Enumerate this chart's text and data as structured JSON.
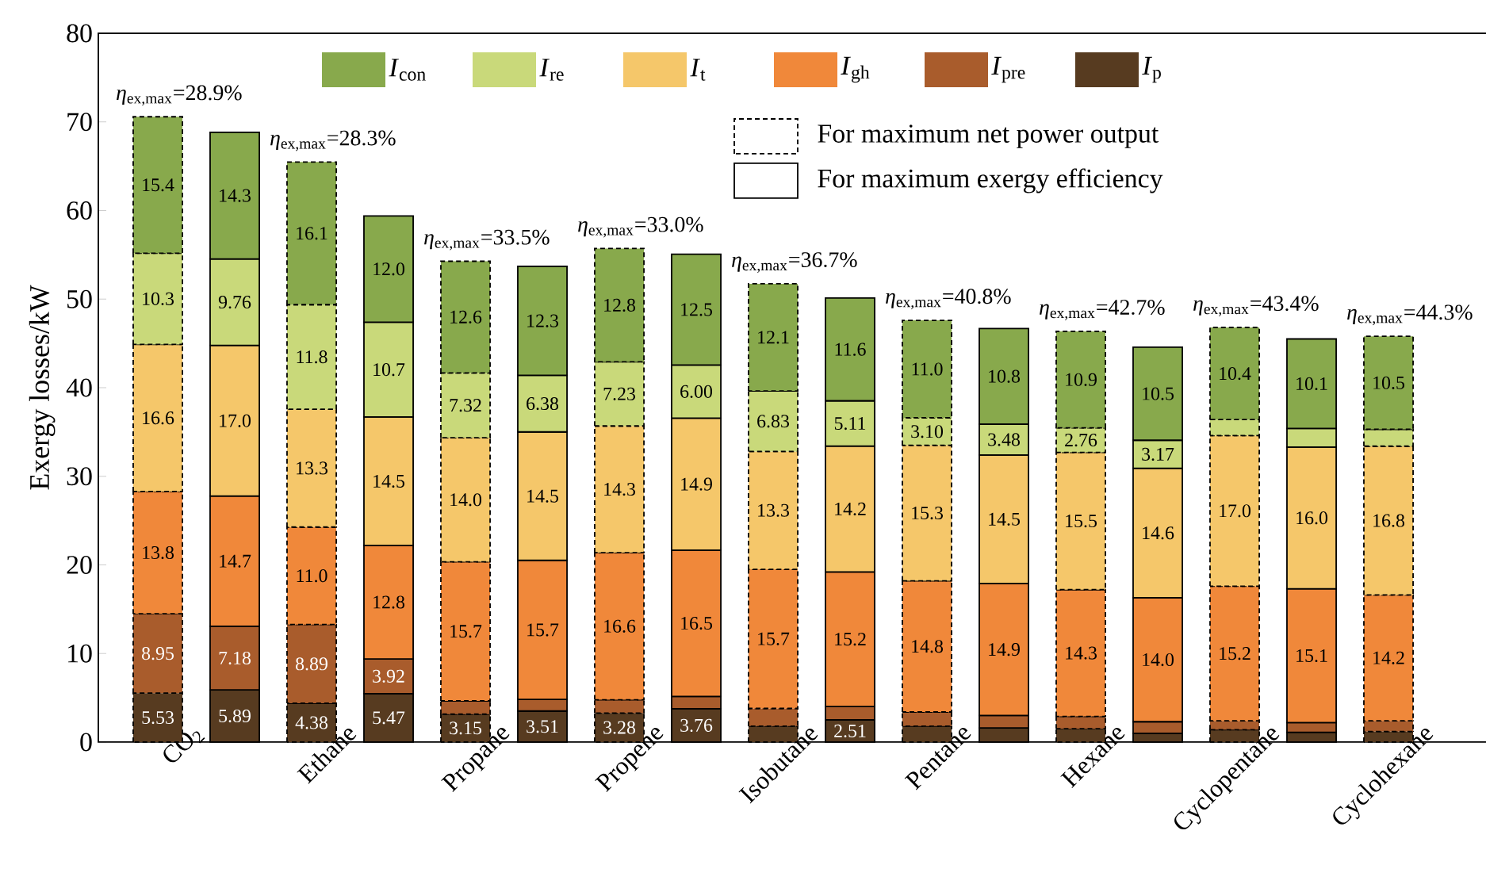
{
  "chart_data": {
    "type": "bar",
    "stacked": true,
    "ylabel": "Exergy losses/kW",
    "ylim": [
      0,
      80
    ],
    "yticks": [
      0,
      10,
      20,
      30,
      40,
      50,
      60,
      70,
      80
    ],
    "legend": "top",
    "categories": [
      "CO$_{2}$",
      null,
      "Ethane",
      null,
      "Propane",
      null,
      "Propene",
      null,
      "Isobutane",
      null,
      "Pentane",
      null,
      "Hexane",
      null,
      "Cyclopentane",
      null,
      "Cyclohexane",
      null
    ],
    "series": [
      {
        "name": "*I*$_{p}$",
        "color": "#573b20",
        "line_style": "dashed",
        "values": [
          5.53,
          null,
          4.38,
          null,
          3.15,
          null,
          3.28,
          null,
          1.8,
          null,
          1.8,
          null,
          1.5,
          null,
          1.4,
          null,
          1.2,
          null
        ],
        "value_labels": [
          "5.53",
          null,
          "4.38",
          null,
          "3.15",
          null,
          "3.28",
          null,
          null,
          null,
          null,
          null,
          null,
          null,
          null,
          null,
          null,
          null
        ]
      },
      {
        "name": "*I*$_{pre}$",
        "color": "#a95c2c",
        "line_style": "dashed",
        "values": [
          8.95,
          null,
          8.89,
          null,
          1.5,
          null,
          1.5,
          null,
          2.0,
          null,
          1.6,
          null,
          1.4,
          null,
          1.0,
          null,
          1.2,
          null
        ],
        "value_labels": [
          "8.95",
          null,
          "8.89",
          null,
          null,
          null,
          null,
          null,
          null,
          null,
          null,
          null,
          null,
          null,
          null,
          null,
          null,
          null
        ]
      },
      {
        "name": "*I*$_{gh}$",
        "color": "#f0883a",
        "line_style": "dashed",
        "values": [
          13.8,
          null,
          11.0,
          null,
          15.7,
          null,
          16.6,
          null,
          15.7,
          null,
          14.8,
          null,
          14.3,
          null,
          15.2,
          null,
          14.2,
          null
        ],
        "value_labels": [
          "13.8",
          null,
          "11.0",
          null,
          "15.7",
          null,
          "16.6",
          null,
          "15.7",
          null,
          "14.8",
          null,
          "14.3",
          null,
          "15.2",
          null,
          "14.2",
          null
        ]
      },
      {
        "name": "*I*$_{t}$",
        "color": "#f5c76a",
        "line_style": "dashed",
        "values": [
          16.6,
          null,
          13.3,
          null,
          14.0,
          null,
          14.3,
          null,
          13.3,
          null,
          15.3,
          null,
          15.5,
          null,
          17.0,
          null,
          16.8,
          null
        ],
        "value_labels": [
          "16.6",
          null,
          "13.3",
          null,
          "14.0",
          null,
          "14.3",
          null,
          "13.3",
          null,
          "15.3",
          null,
          "15.5",
          null,
          "17.0",
          null,
          "16.8",
          null
        ]
      },
      {
        "name": "*I*$_{re}$",
        "color": "#c9d97a",
        "line_style": "dashed",
        "values": [
          10.3,
          null,
          11.8,
          null,
          7.32,
          null,
          7.23,
          null,
          6.83,
          null,
          3.1,
          null,
          2.76,
          null,
          1.8,
          null,
          1.9,
          null
        ],
        "value_labels": [
          "10.3",
          null,
          "11.8",
          null,
          "7.32",
          null,
          "7.23",
          null,
          "6.83",
          null,
          "3.10",
          null,
          "2.76",
          null,
          null,
          null,
          null,
          null
        ]
      },
      {
        "name": "*I*$_{con}$",
        "color": "#88a94c",
        "line_style": "dashed",
        "values": [
          15.4,
          null,
          16.1,
          null,
          12.6,
          null,
          12.8,
          null,
          12.1,
          null,
          11.0,
          null,
          10.9,
          null,
          10.4,
          null,
          10.5,
          null
        ],
        "value_labels": [
          "15.4",
          null,
          "16.1",
          null,
          "12.6",
          null,
          "12.8",
          null,
          "12.1",
          null,
          "11.0",
          null,
          "10.9",
          null,
          "10.4",
          null,
          "10.5",
          null
        ]
      },
      {
        "color": "#573b20",
        "line_style": "solid",
        "values": [
          null,
          5.89,
          null,
          5.47,
          null,
          3.51,
          null,
          3.76,
          null,
          2.51,
          null,
          1.6,
          null,
          1.0,
          null,
          1.1,
          null,
          null
        ],
        "value_labels": [
          null,
          "5.89",
          null,
          "5.47",
          null,
          "3.51",
          null,
          "3.76",
          null,
          "2.51",
          null,
          null,
          null,
          null,
          null,
          null,
          null,
          null
        ]
      },
      {
        "color": "#a95c2c",
        "line_style": "solid",
        "values": [
          null,
          7.18,
          null,
          3.92,
          null,
          1.3,
          null,
          1.4,
          null,
          1.5,
          null,
          1.4,
          null,
          1.3,
          null,
          1.1,
          null,
          null
        ],
        "value_labels": [
          null,
          "7.18",
          null,
          "3.92",
          null,
          null,
          null,
          null,
          null,
          null,
          null,
          null,
          null,
          null,
          null,
          null,
          null,
          null
        ]
      },
      {
        "color": "#f0883a",
        "line_style": "solid",
        "values": [
          null,
          14.7,
          null,
          12.8,
          null,
          15.7,
          null,
          16.5,
          null,
          15.2,
          null,
          14.9,
          null,
          14.0,
          null,
          15.1,
          null,
          null
        ],
        "value_labels": [
          null,
          "14.7",
          null,
          "12.8",
          null,
          "15.7",
          null,
          "16.5",
          null,
          "15.2",
          null,
          "14.9",
          null,
          "14.0",
          null,
          "15.1",
          null,
          null
        ]
      },
      {
        "color": "#f5c76a",
        "line_style": "solid",
        "values": [
          null,
          17.0,
          null,
          14.5,
          null,
          14.5,
          null,
          14.9,
          null,
          14.2,
          null,
          14.5,
          null,
          14.6,
          null,
          16.0,
          null,
          null
        ],
        "value_labels": [
          null,
          "17.0",
          null,
          "14.5",
          null,
          "14.5",
          null,
          "14.9",
          null,
          "14.2",
          null,
          "14.5",
          null,
          "14.6",
          null,
          "16.0",
          null,
          null
        ]
      },
      {
        "color": "#c9d97a",
        "line_style": "solid",
        "values": [
          null,
          9.76,
          null,
          10.7,
          null,
          6.38,
          null,
          6.0,
          null,
          5.11,
          null,
          3.48,
          null,
          3.17,
          null,
          2.1,
          null,
          null
        ],
        "value_labels": [
          null,
          "9.76",
          null,
          "10.7",
          null,
          "6.38",
          null,
          "6.00",
          null,
          "5.11",
          null,
          "3.48",
          null,
          "3.17",
          null,
          null,
          null,
          null
        ]
      },
      {
        "color": "#88a94c",
        "line_style": "solid",
        "values": [
          null,
          14.3,
          null,
          12.0,
          null,
          12.3,
          null,
          12.5,
          null,
          11.6,
          null,
          10.8,
          null,
          10.5,
          null,
          10.1,
          null,
          null
        ],
        "value_labels": [
          null,
          "14.3",
          null,
          "12.0",
          null,
          "12.3",
          null,
          "12.5",
          null,
          "11.6",
          null,
          "10.8",
          null,
          "10.5",
          null,
          "10.1",
          null,
          null
        ]
      }
    ],
    "annotations": [
      "For maximum net power output",
      "For maximum exergy efficiency",
      "*η*$_{ex,max}$=28.9%",
      "*η*$_{ex,max}$=28.3%",
      "*η*$_{ex,max}$=33.5%",
      "*η*$_{ex,max}$=33.0%",
      "*η*$_{ex,max}$=36.7%",
      "*η*$_{ex,max}$=40.8%",
      "*η*$_{ex,max}$=42.7%",
      "*η*$_{ex,max}$=43.4%",
      "*η*$_{ex,max}$=44.3%"
    ]
  }
}
